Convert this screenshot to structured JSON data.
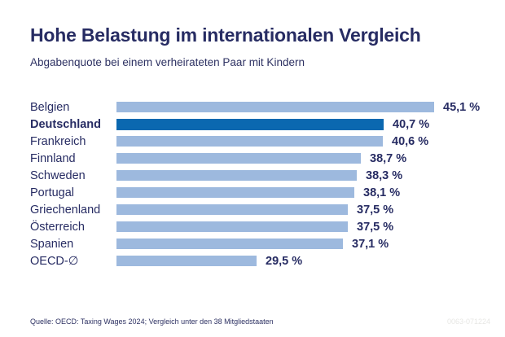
{
  "header": {
    "title": "Hohe Belastung im internationalen Vergleich",
    "subtitle": "Abgabenquote bei einem verheirateten Paar mit Kindern"
  },
  "footer": {
    "source": "Quelle: OECD: Taxing Wages 2024; Vergleich unter den 38 Mitgliedstaaten",
    "graphic_id": "0063-071224"
  },
  "colors": {
    "bar": "#9db9de",
    "highlight_bar": "#0b68b0",
    "text_navy": "#272c63",
    "background": "#ffffff"
  },
  "chart_data": {
    "type": "bar",
    "orientation": "horizontal",
    "title": "Hohe Belastung im internationalen Vergleich",
    "subtitle": "Abgabenquote bei einem verheirateten Paar mit Kindern",
    "xlabel": "",
    "ylabel": "",
    "grid": false,
    "legend": false,
    "xlim": [
      17.25,
      45.1
    ],
    "categories": [
      "Belgien",
      "Deutschland",
      "Frankreich",
      "Finnland",
      "Schweden",
      "Portugal",
      "Griechenland",
      "Österreich",
      "Spanien",
      "OECD-∅"
    ],
    "values": [
      45.1,
      40.7,
      40.6,
      38.7,
      38.3,
      38.1,
      37.5,
      37.5,
      37.1,
      29.5
    ],
    "value_labels": [
      "45,1 %",
      "40,7 %",
      "40,6 %",
      "38,7 %",
      "38,3 %",
      "38,1 %",
      "37,5 %",
      "37,5 %",
      "37,1 %",
      "29,5 %"
    ],
    "highlight_category": "Deutschland",
    "unit": "%"
  }
}
